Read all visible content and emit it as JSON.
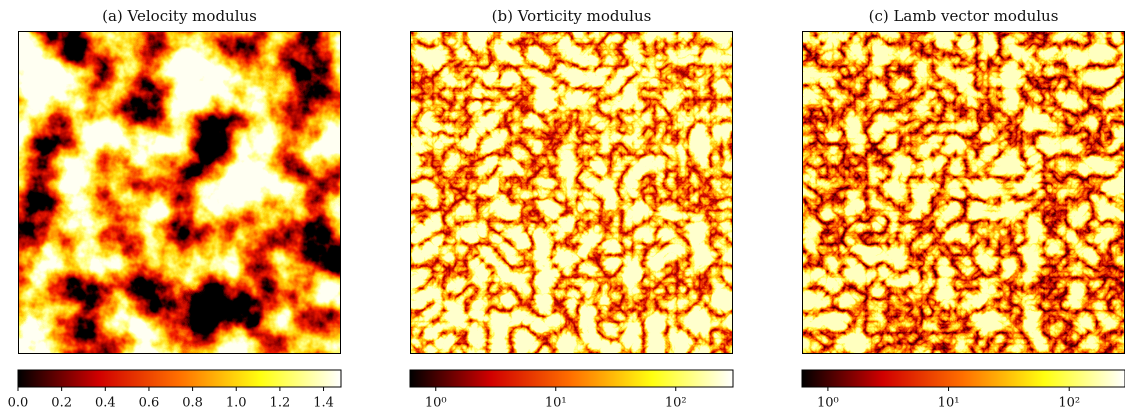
{
  "chart_data": [
    {
      "type": "heatmap",
      "title": "(a) Velocity modulus",
      "log": false,
      "colormap": [
        "#000000",
        "#d00000",
        "#ff7000",
        "#ffff10",
        "#ffffff"
      ],
      "clim": [
        0,
        1.48
      ],
      "cticks": [
        {
          "value": 0,
          "label": "0.0"
        },
        0.2,
        0.4,
        0.6,
        0.8,
        {
          "value": 1,
          "label": "1.0"
        },
        1.2,
        1.4
      ]
    },
    {
      "type": "heatmap",
      "title": "(b) Vorticity modulus",
      "log": true,
      "colormap": [
        "#000000",
        "#d00000",
        "#ff7000",
        "#ffff10",
        "#ffffff"
      ],
      "clim": [
        0.61,
        300
      ],
      "cticks": [
        {
          "value": 1,
          "label": "10⁰"
        },
        {
          "value": 10,
          "label": "10¹"
        },
        {
          "value": 100,
          "label": "10²"
        }
      ]
    },
    {
      "type": "heatmap",
      "title": "(c) Lamb vector modulus",
      "log": true,
      "colormap": [
        "#000000",
        "#d00000",
        "#ff7000",
        "#ffff10",
        "#ffffff"
      ],
      "clim": [
        0.61,
        290
      ],
      "cticks": [
        {
          "value": 1,
          "label": "10⁰"
        },
        {
          "value": 10,
          "label": "10¹"
        },
        {
          "value": 100,
          "label": "10²"
        }
      ]
    }
  ]
}
